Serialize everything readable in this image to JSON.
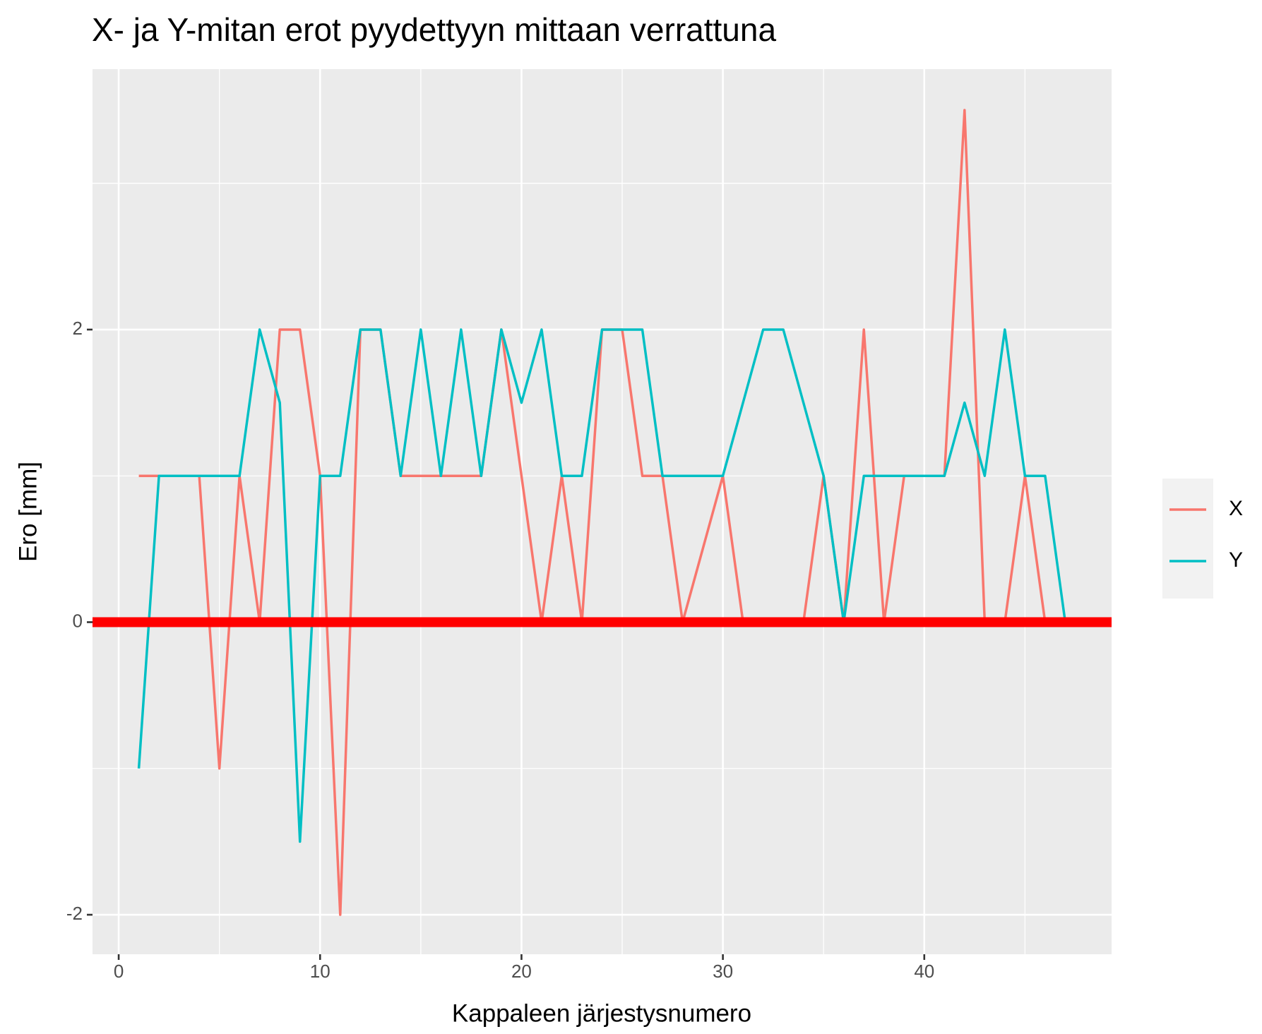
{
  "chart_data": {
    "type": "line",
    "title": "X- ja Y-mitan erot pyydettyyn mittaan verrattuna",
    "x_label": "Kappaleen järjestysnumero",
    "y_label": "Ero [mm]",
    "x": [
      1,
      2,
      3,
      4,
      5,
      6,
      7,
      8,
      9,
      10,
      11,
      12,
      13,
      14,
      15,
      16,
      17,
      18,
      19,
      20,
      21,
      22,
      23,
      24,
      25,
      26,
      27,
      28,
      29,
      30,
      31,
      32,
      33,
      34,
      35,
      36,
      37,
      38,
      39,
      40,
      41,
      42,
      43,
      44,
      45,
      46,
      47
    ],
    "series": [
      {
        "name": "X",
        "color": "#f8766d",
        "values": [
          1,
          1,
          1,
          1,
          -1,
          1,
          0,
          2,
          2,
          1,
          -2,
          2,
          2,
          1,
          1,
          1,
          1,
          1,
          2,
          1,
          0,
          1,
          0,
          2,
          2,
          1,
          1,
          0,
          0.5,
          1,
          0,
          0,
          0,
          0,
          1,
          0,
          2,
          0,
          1,
          1,
          1,
          3.5,
          0,
          0,
          1,
          0,
          0
        ]
      },
      {
        "name": "Y",
        "color": "#00bfc4",
        "values": [
          -1,
          1,
          1,
          1,
          1,
          1,
          2,
          1.5,
          -1.5,
          1,
          1,
          2,
          2,
          1,
          2,
          1,
          2,
          1,
          2,
          1.5,
          2,
          1,
          1,
          2,
          2,
          2,
          1,
          1,
          1,
          1,
          1.5,
          2,
          2,
          1.5,
          1,
          0,
          1,
          1,
          1,
          1,
          1,
          1.5,
          1,
          2,
          1,
          1,
          0
        ]
      }
    ],
    "xlim": [
      -1.3,
      49.3
    ],
    "xticks": [
      0,
      10,
      20,
      30,
      40
    ],
    "minor_xticks": [
      5,
      15,
      25,
      35,
      45
    ],
    "ylim": [
      -2.27,
      3.78
    ],
    "yticks": [
      -2,
      0,
      2
    ],
    "minor_yticks": [
      -1,
      1,
      3
    ],
    "hline": {
      "value": 0,
      "color": "#ff0000"
    },
    "grid": true,
    "legend": "right"
  }
}
